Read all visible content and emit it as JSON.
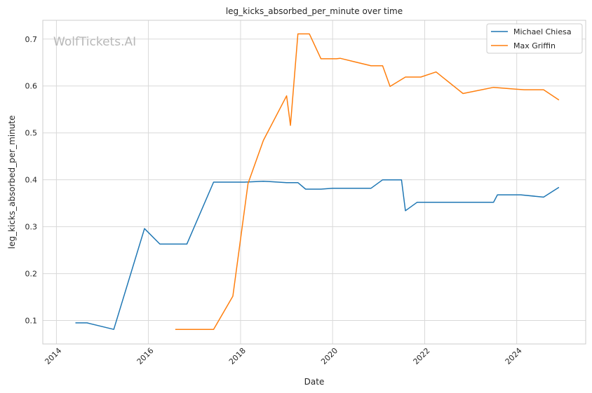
{
  "chart_data": {
    "type": "line",
    "title": "leg_kicks_absorbed_per_minute over time",
    "xlabel": "Date",
    "ylabel": "leg_kicks_absorbed_per_minute",
    "watermark": "WolfTickets.AI",
    "xlim": [
      "2013-09-15",
      "2025-07-01"
    ],
    "ylim": [
      0.05,
      0.74
    ],
    "x_ticks": [
      {
        "value": "2014-01-01",
        "label": "2014"
      },
      {
        "value": "2016-01-01",
        "label": "2016"
      },
      {
        "value": "2018-01-01",
        "label": "2018"
      },
      {
        "value": "2020-01-01",
        "label": "2020"
      },
      {
        "value": "2022-01-01",
        "label": "2022"
      },
      {
        "value": "2024-01-01",
        "label": "2024"
      }
    ],
    "y_ticks": [
      0.1,
      0.2,
      0.3,
      0.4,
      0.5,
      0.6,
      0.7
    ],
    "grid": true,
    "legend_position": "top-right",
    "series": [
      {
        "name": "Michael Chiesa",
        "color": "#1f77b4",
        "points": [
          [
            "2014-06-01",
            0.095
          ],
          [
            "2014-09-01",
            0.095
          ],
          [
            "2015-04-01",
            0.081
          ],
          [
            "2015-12-01",
            0.296
          ],
          [
            "2016-04-01",
            0.263
          ],
          [
            "2016-11-01",
            0.263
          ],
          [
            "2017-06-01",
            0.395
          ],
          [
            "2018-02-01",
            0.395
          ],
          [
            "2018-07-01",
            0.397
          ],
          [
            "2019-01-01",
            0.394
          ],
          [
            "2019-04-01",
            0.394
          ],
          [
            "2019-06-01",
            0.38
          ],
          [
            "2019-10-01",
            0.38
          ],
          [
            "2020-01-01",
            0.382
          ],
          [
            "2020-11-01",
            0.382
          ],
          [
            "2021-02-01",
            0.4
          ],
          [
            "2021-07-01",
            0.4
          ],
          [
            "2021-08-01",
            0.334
          ],
          [
            "2021-11-01",
            0.352
          ],
          [
            "2023-07-01",
            0.352
          ],
          [
            "2023-08-01",
            0.368
          ],
          [
            "2024-02-01",
            0.368
          ],
          [
            "2024-08-01",
            0.363
          ],
          [
            "2024-12-01",
            0.384
          ]
        ]
      },
      {
        "name": "Max Griffin",
        "color": "#ff7f0e",
        "points": [
          [
            "2016-08-01",
            0.081
          ],
          [
            "2017-06-01",
            0.081
          ],
          [
            "2017-11-01",
            0.152
          ],
          [
            "2018-03-01",
            0.392
          ],
          [
            "2018-07-01",
            0.484
          ],
          [
            "2019-01-01",
            0.579
          ],
          [
            "2019-02-01",
            0.516
          ],
          [
            "2019-04-01",
            0.711
          ],
          [
            "2019-07-01",
            0.711
          ],
          [
            "2019-10-01",
            0.658
          ],
          [
            "2020-02-01",
            0.658
          ],
          [
            "2020-03-01",
            0.659
          ],
          [
            "2020-11-01",
            0.643
          ],
          [
            "2021-02-01",
            0.643
          ],
          [
            "2021-04-01",
            0.599
          ],
          [
            "2021-08-01",
            0.619
          ],
          [
            "2021-12-01",
            0.619
          ],
          [
            "2022-04-01",
            0.63
          ],
          [
            "2022-11-01",
            0.584
          ],
          [
            "2023-07-01",
            0.597
          ],
          [
            "2024-01-01",
            0.593
          ],
          [
            "2024-03-01",
            0.592
          ],
          [
            "2024-08-01",
            0.592
          ],
          [
            "2024-12-01",
            0.57
          ]
        ]
      }
    ]
  }
}
